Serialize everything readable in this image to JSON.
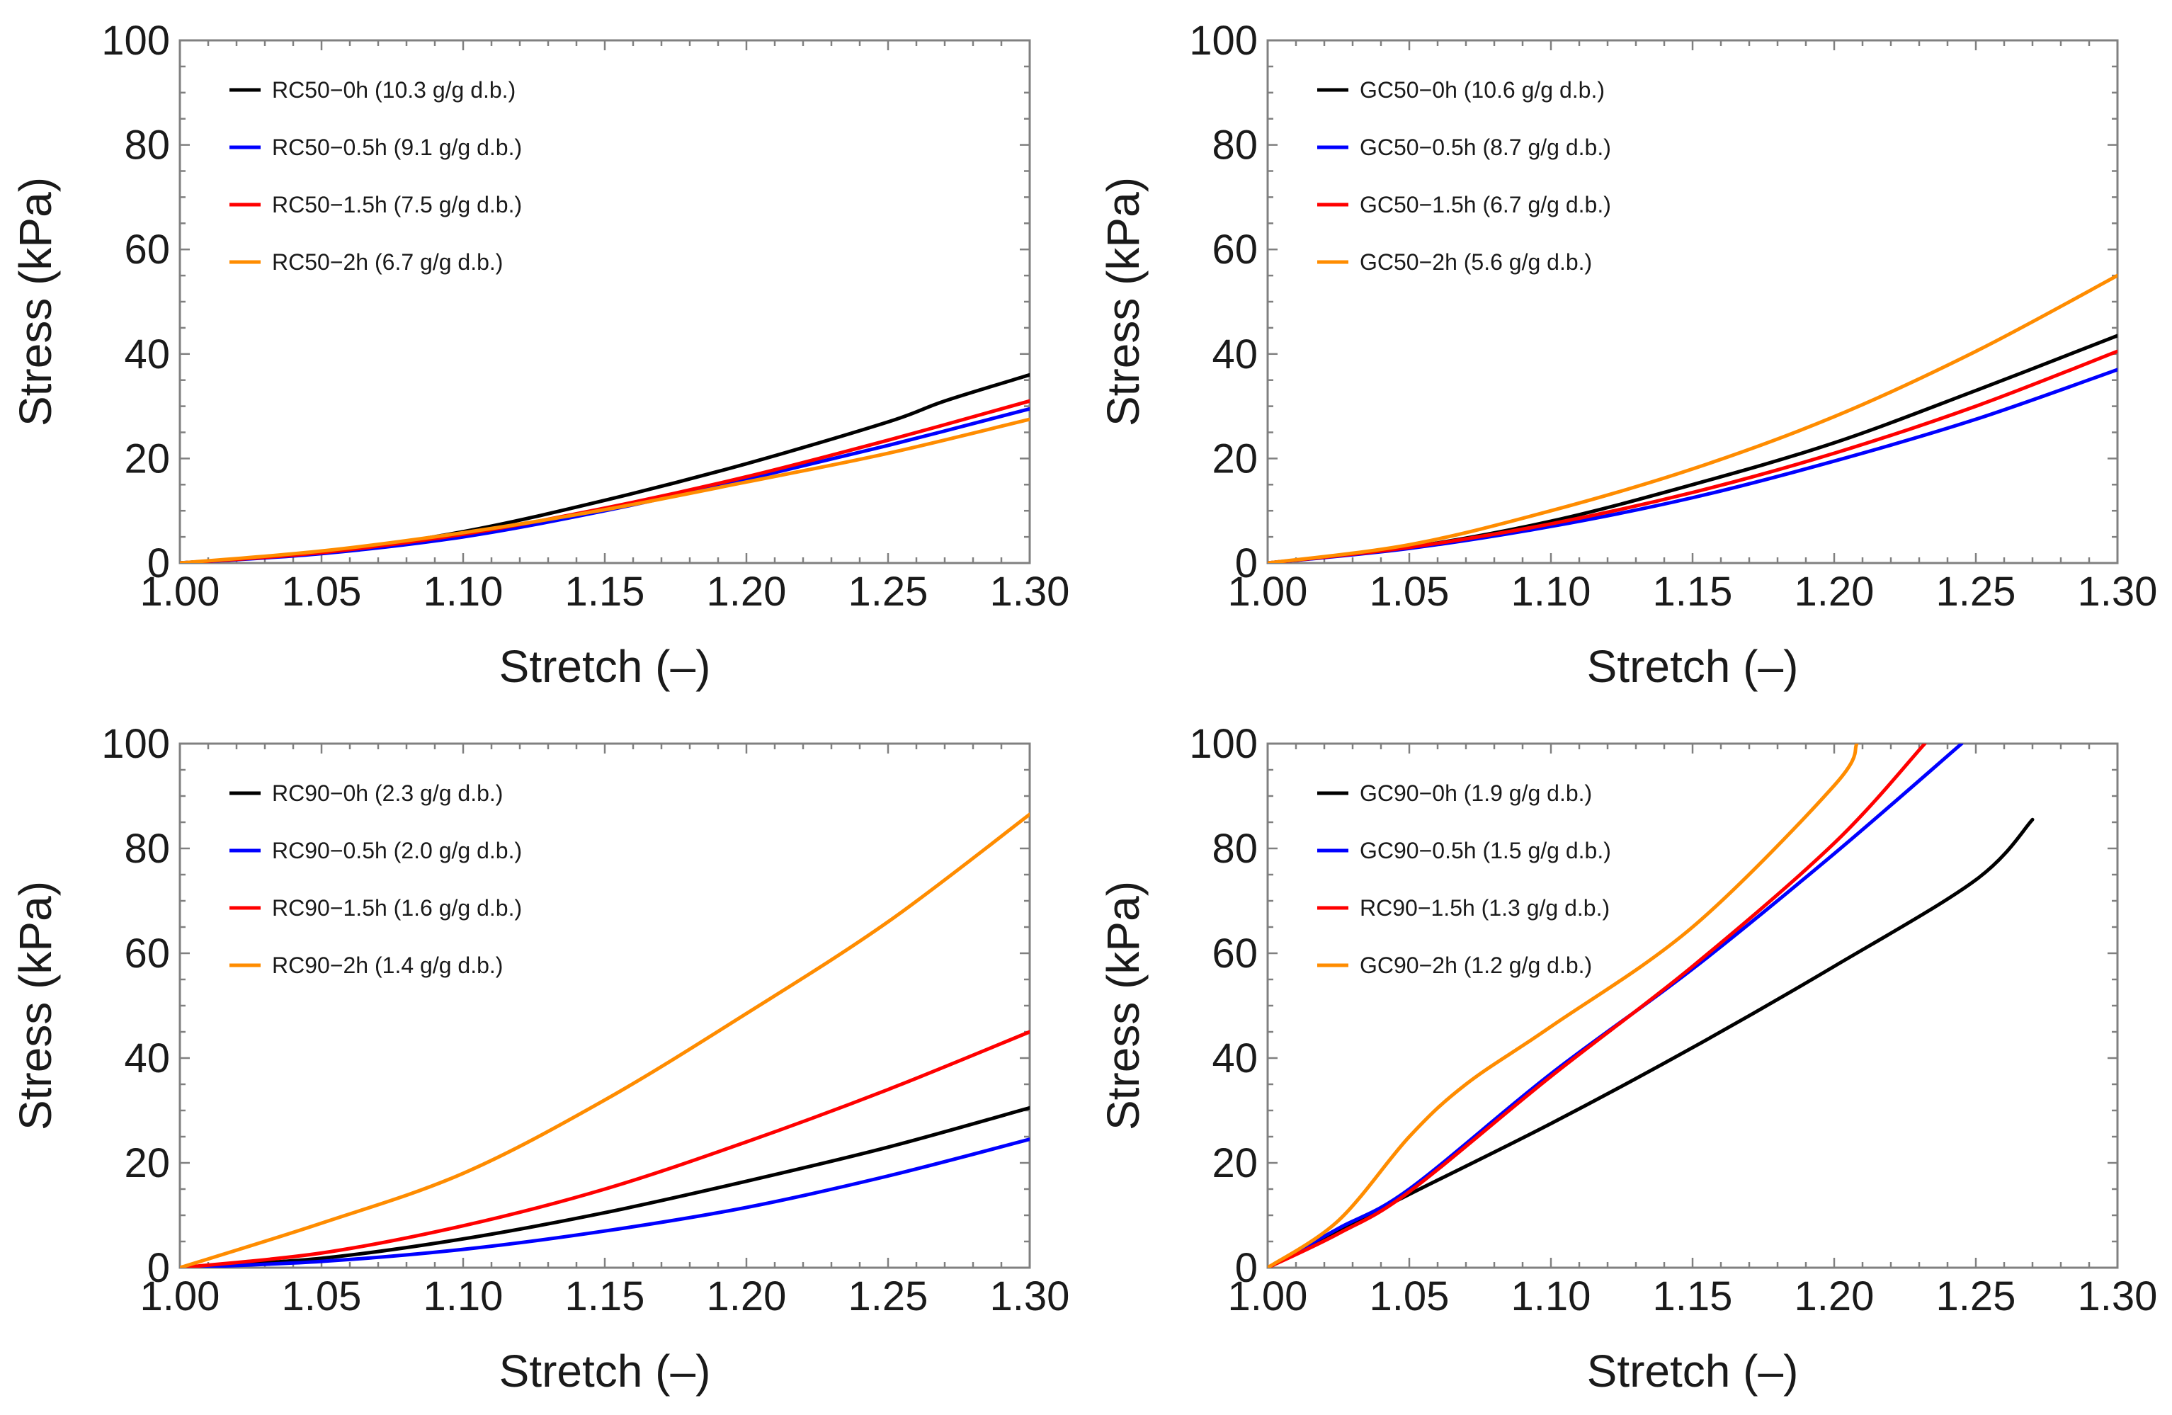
{
  "chart_data": [
    {
      "type": "line",
      "xlabel": "Stretch (–)",
      "ylabel": "Stress (kPa)",
      "xlim": [
        1.0,
        1.3
      ],
      "ylim": [
        0,
        100
      ],
      "xticks": [
        "1.00",
        "1.05",
        "1.10",
        "1.15",
        "1.20",
        "1.25",
        "1.30"
      ],
      "yticks": [
        "0",
        "20",
        "40",
        "60",
        "80",
        "100"
      ],
      "grid": false,
      "legend_position": "top-left",
      "series": [
        {
          "name": "RC50−0h (10.3 g/g d.b.)",
          "color": "#000000",
          "x": [
            1.0,
            1.05,
            1.1,
            1.15,
            1.2,
            1.25,
            1.27,
            1.3
          ],
          "y": [
            0,
            2,
            6,
            12,
            19,
            27,
            31,
            36
          ]
        },
        {
          "name": "RC50−0.5h (9.1 g/g d.b.)",
          "color": "#0000ff",
          "x": [
            1.0,
            1.05,
            1.1,
            1.15,
            1.2,
            1.25,
            1.3
          ],
          "y": [
            0,
            1.8,
            5,
            10,
            16,
            22.5,
            29.5
          ]
        },
        {
          "name": "RC50−1.5h (7.5 g/g d.b.)",
          "color": "#ff0000",
          "x": [
            1.0,
            1.05,
            1.1,
            1.15,
            1.2,
            1.25,
            1.3
          ],
          "y": [
            0,
            2,
            5.5,
            10.5,
            16.5,
            23.5,
            31
          ]
        },
        {
          "name": "RC50−2h (6.7 g/g d.b.)",
          "color": "#ff8c00",
          "x": [
            1.0,
            1.05,
            1.1,
            1.15,
            1.2,
            1.25,
            1.3
          ],
          "y": [
            0,
            2.3,
            5.8,
            10.2,
            15.5,
            21,
            27.5
          ]
        }
      ]
    },
    {
      "type": "line",
      "xlabel": "Stretch (–)",
      "ylabel": "Stress (kPa)",
      "xlim": [
        1.0,
        1.3
      ],
      "ylim": [
        0,
        100
      ],
      "xticks": [
        "1.00",
        "1.05",
        "1.10",
        "1.15",
        "1.20",
        "1.25",
        "1.30"
      ],
      "yticks": [
        "0",
        "20",
        "40",
        "60",
        "80",
        "100"
      ],
      "grid": false,
      "legend_position": "top-left",
      "series": [
        {
          "name": "GC50−0h (10.6 g/g d.b.)",
          "color": "#000000",
          "x": [
            1.0,
            1.05,
            1.1,
            1.15,
            1.2,
            1.25,
            1.3
          ],
          "y": [
            0,
            3,
            8,
            15,
            23,
            33,
            43.5
          ]
        },
        {
          "name": "GC50−0.5h (8.7 g/g d.b.)",
          "color": "#0000ff",
          "x": [
            1.0,
            1.05,
            1.1,
            1.15,
            1.2,
            1.25,
            1.3
          ],
          "y": [
            0,
            2.8,
            7,
            12.5,
            19.5,
            27.5,
            37
          ]
        },
        {
          "name": "GC50−1.5h (6.7 g/g d.b.)",
          "color": "#ff0000",
          "x": [
            1.0,
            1.05,
            1.1,
            1.15,
            1.2,
            1.25,
            1.3
          ],
          "y": [
            0,
            3,
            7.5,
            13.5,
            21,
            30,
            40.5
          ]
        },
        {
          "name": "GC50−2h (5.6 g/g d.b.)",
          "color": "#ff8c00",
          "x": [
            1.0,
            1.05,
            1.1,
            1.15,
            1.2,
            1.25,
            1.3
          ],
          "y": [
            0,
            3.5,
            10,
            18,
            28,
            40.5,
            55
          ]
        }
      ]
    },
    {
      "type": "line",
      "xlabel": "Stretch (–)",
      "ylabel": "Stress (kPa)",
      "xlim": [
        1.0,
        1.3
      ],
      "ylim": [
        0,
        100
      ],
      "xticks": [
        "1.00",
        "1.05",
        "1.10",
        "1.15",
        "1.20",
        "1.25",
        "1.30"
      ],
      "yticks": [
        "0",
        "20",
        "40",
        "60",
        "80",
        "100"
      ],
      "grid": false,
      "legend_position": "top-left",
      "series": [
        {
          "name": "RC90−0h (2.3 g/g d.b.)",
          "color": "#000000",
          "x": [
            1.0,
            1.05,
            1.1,
            1.15,
            1.2,
            1.25,
            1.3
          ],
          "y": [
            0,
            1.8,
            5.5,
            10.5,
            16.5,
            23,
            30.5
          ]
        },
        {
          "name": "RC90−0.5h (2.0 g/g d.b.)",
          "color": "#0000ff",
          "x": [
            1.0,
            1.05,
            1.1,
            1.15,
            1.2,
            1.25,
            1.3
          ],
          "y": [
            0,
            1.2,
            3.5,
            7,
            11.5,
            17.5,
            24.5
          ]
        },
        {
          "name": "RC90−1.5h (1.6 g/g d.b.)",
          "color": "#ff0000",
          "x": [
            1.0,
            1.05,
            1.1,
            1.15,
            1.2,
            1.25,
            1.3
          ],
          "y": [
            0,
            2.8,
            8,
            15,
            24,
            34,
            45
          ]
        },
        {
          "name": "RC90−2h (1.4 g/g d.b.)",
          "color": "#ff8c00",
          "x": [
            1.0,
            1.05,
            1.1,
            1.15,
            1.2,
            1.25,
            1.3
          ],
          "y": [
            0,
            8.5,
            18,
            32,
            48.5,
            66,
            86.5
          ]
        }
      ]
    },
    {
      "type": "line",
      "xlabel": "Stretch (–)",
      "ylabel": "Stress (kPa)",
      "xlim": [
        1.0,
        1.3
      ],
      "ylim": [
        0,
        100
      ],
      "xticks": [
        "1.00",
        "1.05",
        "1.10",
        "1.15",
        "1.20",
        "1.25",
        "1.30"
      ],
      "yticks": [
        "0",
        "20",
        "40",
        "60",
        "80",
        "100"
      ],
      "grid": false,
      "legend_position": "top-left",
      "series": [
        {
          "name": "GC90−0h (1.9 g/g d.b.)",
          "color": "#000000",
          "x": [
            1.0,
            1.025,
            1.05,
            1.1,
            1.15,
            1.2,
            1.25,
            1.27
          ],
          "y": [
            0,
            7,
            14,
            27.5,
            42,
            57.5,
            74,
            85.5
          ]
        },
        {
          "name": "GC90−0.5h (1.5 g/g d.b.)",
          "color": "#0000ff",
          "x": [
            1.0,
            1.025,
            1.05,
            1.1,
            1.15,
            1.2,
            1.245
          ],
          "y": [
            0,
            7.5,
            15,
            37,
            57,
            79,
            100
          ]
        },
        {
          "name": "RC90−1.5h (1.3 g/g d.b.)",
          "color": "#ff0000",
          "x": [
            1.0,
            1.025,
            1.05,
            1.1,
            1.15,
            1.2,
            1.232
          ],
          "y": [
            0,
            6.5,
            14.5,
            36.5,
            57.5,
            81,
            100
          ]
        },
        {
          "name": "GC90−2h (1.2 g/g d.b.)",
          "color": "#ff8c00",
          "x": [
            1.0,
            1.025,
            1.05,
            1.07,
            1.1,
            1.15,
            1.2,
            1.208
          ],
          "y": [
            0,
            9,
            25,
            35,
            46,
            65,
            92,
            100
          ]
        }
      ]
    }
  ]
}
